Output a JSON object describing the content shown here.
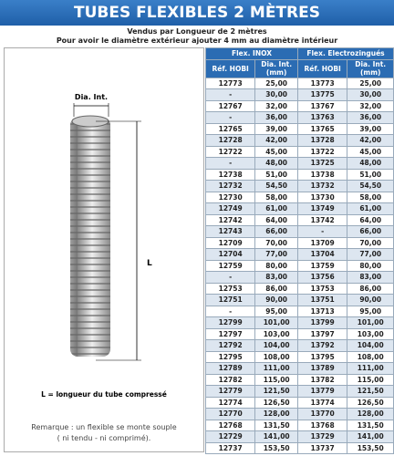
{
  "header": {
    "title": "TUBES FLEXIBLES 2 MÈTRES",
    "subtitle": "Vendus par Longueur de 2 mètres",
    "note": "Pour avoir le diamètre extérieur ajouter 4 mm au diamètre intérieur"
  },
  "drawing": {
    "dia_label": "Dia. Int.",
    "length_label": "L",
    "caption": "L = longueur du tube compressé",
    "remark_1": "Remarque : un flexible se monte souple",
    "remark_2": "( ni tendu - ni comprimé)."
  },
  "table": {
    "groups": [
      "Flex. INOX",
      "Flex. Electrozingués"
    ],
    "columns": [
      "Réf. HOBI",
      "Dia. Int. (mm)",
      "Réf. HOBI",
      "Dia. Int. (mm)"
    ],
    "rows": [
      [
        "12773",
        "25,00",
        "13773",
        "25,00"
      ],
      [
        "-",
        "30,00",
        "13775",
        "30,00"
      ],
      [
        "12767",
        "32,00",
        "13767",
        "32,00"
      ],
      [
        "-",
        "36,00",
        "13763",
        "36,00"
      ],
      [
        "12765",
        "39,00",
        "13765",
        "39,00"
      ],
      [
        "12728",
        "42,00",
        "13728",
        "42,00"
      ],
      [
        "12722",
        "45,00",
        "13722",
        "45,00"
      ],
      [
        "-",
        "48,00",
        "13725",
        "48,00"
      ],
      [
        "12738",
        "51,00",
        "13738",
        "51,00"
      ],
      [
        "12732",
        "54,50",
        "13732",
        "54,50"
      ],
      [
        "12730",
        "58,00",
        "13730",
        "58,00"
      ],
      [
        "12749",
        "61,00",
        "13749",
        "61,00"
      ],
      [
        "12742",
        "64,00",
        "13742",
        "64,00"
      ],
      [
        "12743",
        "66,00",
        "-",
        "66,00"
      ],
      [
        "12709",
        "70,00",
        "13709",
        "70,00"
      ],
      [
        "12704",
        "77,00",
        "13704",
        "77,00"
      ],
      [
        "12759",
        "80,00",
        "13759",
        "80,00"
      ],
      [
        "-",
        "83,00",
        "13756",
        "83,00"
      ],
      [
        "12753",
        "86,00",
        "13753",
        "86,00"
      ],
      [
        "12751",
        "90,00",
        "13751",
        "90,00"
      ],
      [
        "-",
        "95,00",
        "13713",
        "95,00"
      ],
      [
        "12799",
        "101,00",
        "13799",
        "101,00"
      ],
      [
        "12797",
        "103,00",
        "13797",
        "103,00"
      ],
      [
        "12792",
        "104,00",
        "13792",
        "104,00"
      ],
      [
        "12795",
        "108,00",
        "13795",
        "108,00"
      ],
      [
        "12789",
        "111,00",
        "13789",
        "111,00"
      ],
      [
        "12782",
        "115,00",
        "13782",
        "115,00"
      ],
      [
        "12779",
        "121,50",
        "13779",
        "121,50"
      ],
      [
        "12774",
        "126,50",
        "13774",
        "126,50"
      ],
      [
        "12770",
        "128,00",
        "13770",
        "128,00"
      ],
      [
        "12768",
        "131,50",
        "13768",
        "131,50"
      ],
      [
        "12729",
        "141,00",
        "13729",
        "141,00"
      ],
      [
        "12737",
        "153,50",
        "13737",
        "153,50"
      ]
    ]
  }
}
